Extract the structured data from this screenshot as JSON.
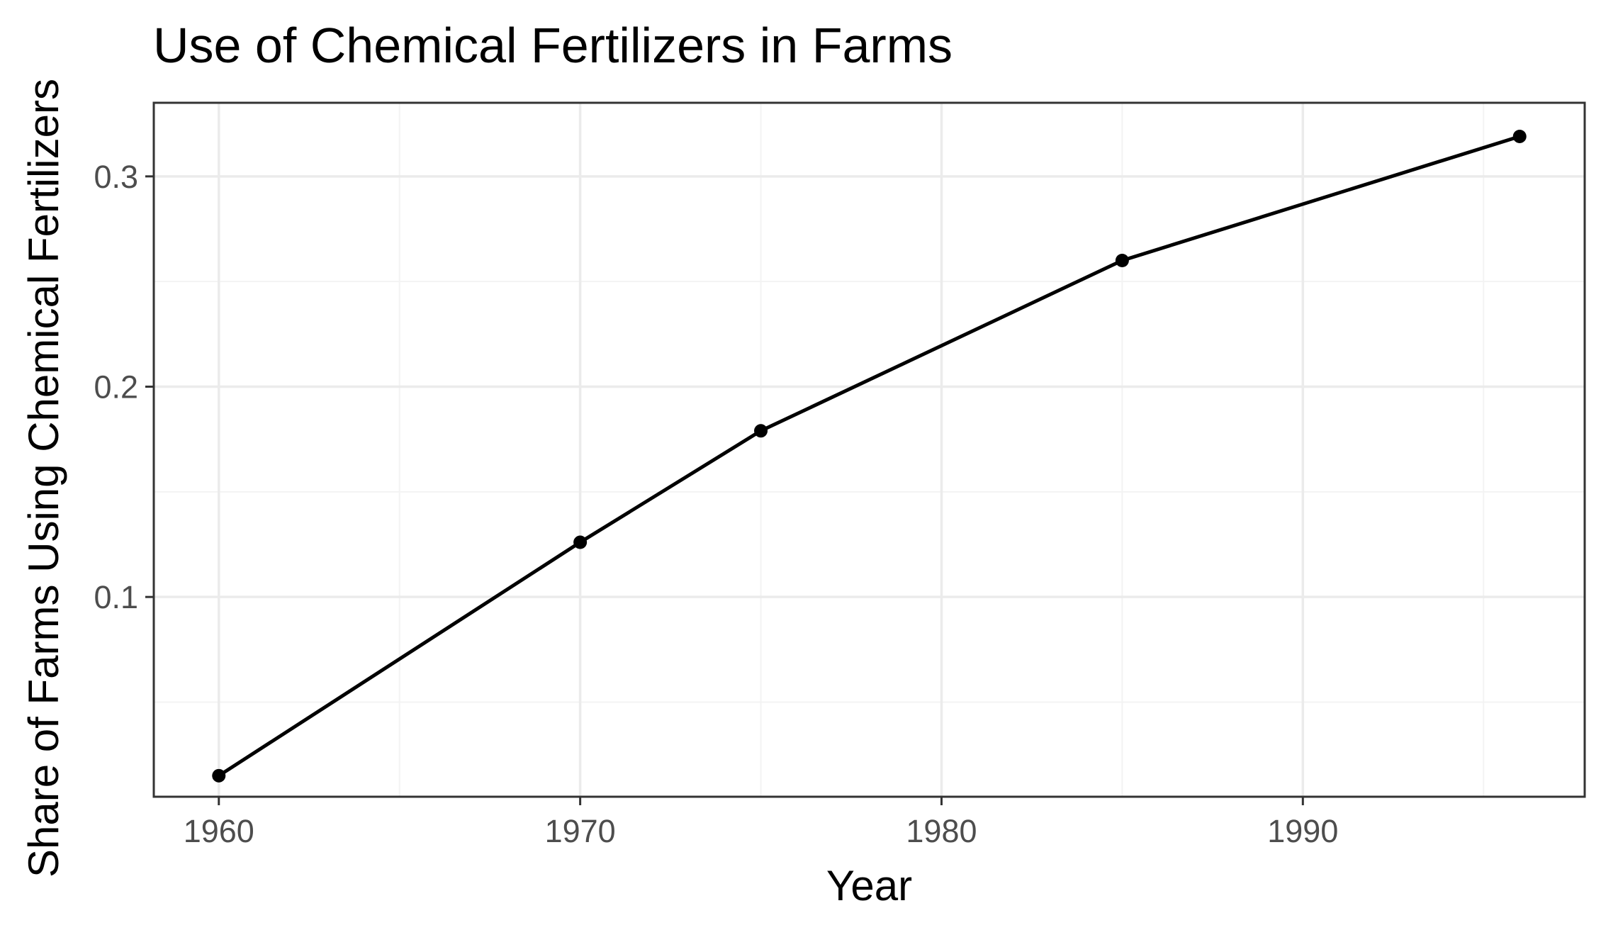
{
  "chart_data": {
    "type": "line",
    "title": "Use of Chemical Fertilizers in Farms",
    "xlabel": "Year",
    "ylabel": "Share of Farms Using Chemical Fertilizers",
    "xlim": [
      1958.2,
      1997.8
    ],
    "ylim": [
      0.005,
      0.335
    ],
    "x_ticks": [
      1960,
      1970,
      1980,
      1990
    ],
    "x_tick_labels": [
      "1960",
      "1970",
      "1980",
      "1990"
    ],
    "x_minor_ticks": [
      1965,
      1975,
      1985,
      1995
    ],
    "y_ticks": [
      0.1,
      0.2,
      0.3
    ],
    "y_tick_labels": [
      "0.1",
      "0.2",
      "0.3"
    ],
    "y_minor_ticks": [
      0.05,
      0.15,
      0.25
    ],
    "grid": true,
    "legend": "none",
    "series": [
      {
        "x": [
          1960,
          1970,
          1975,
          1985,
          1996
        ],
        "values": [
          0.015,
          0.126,
          0.179,
          0.26,
          0.319
        ],
        "color": "#000000"
      }
    ],
    "colors": {
      "panel_border": "#333333",
      "grid_major": "#ebebeb",
      "grid_minor": "#f3f3f3",
      "tick_text": "#4d4d4d",
      "tick_mark": "#333333"
    }
  }
}
